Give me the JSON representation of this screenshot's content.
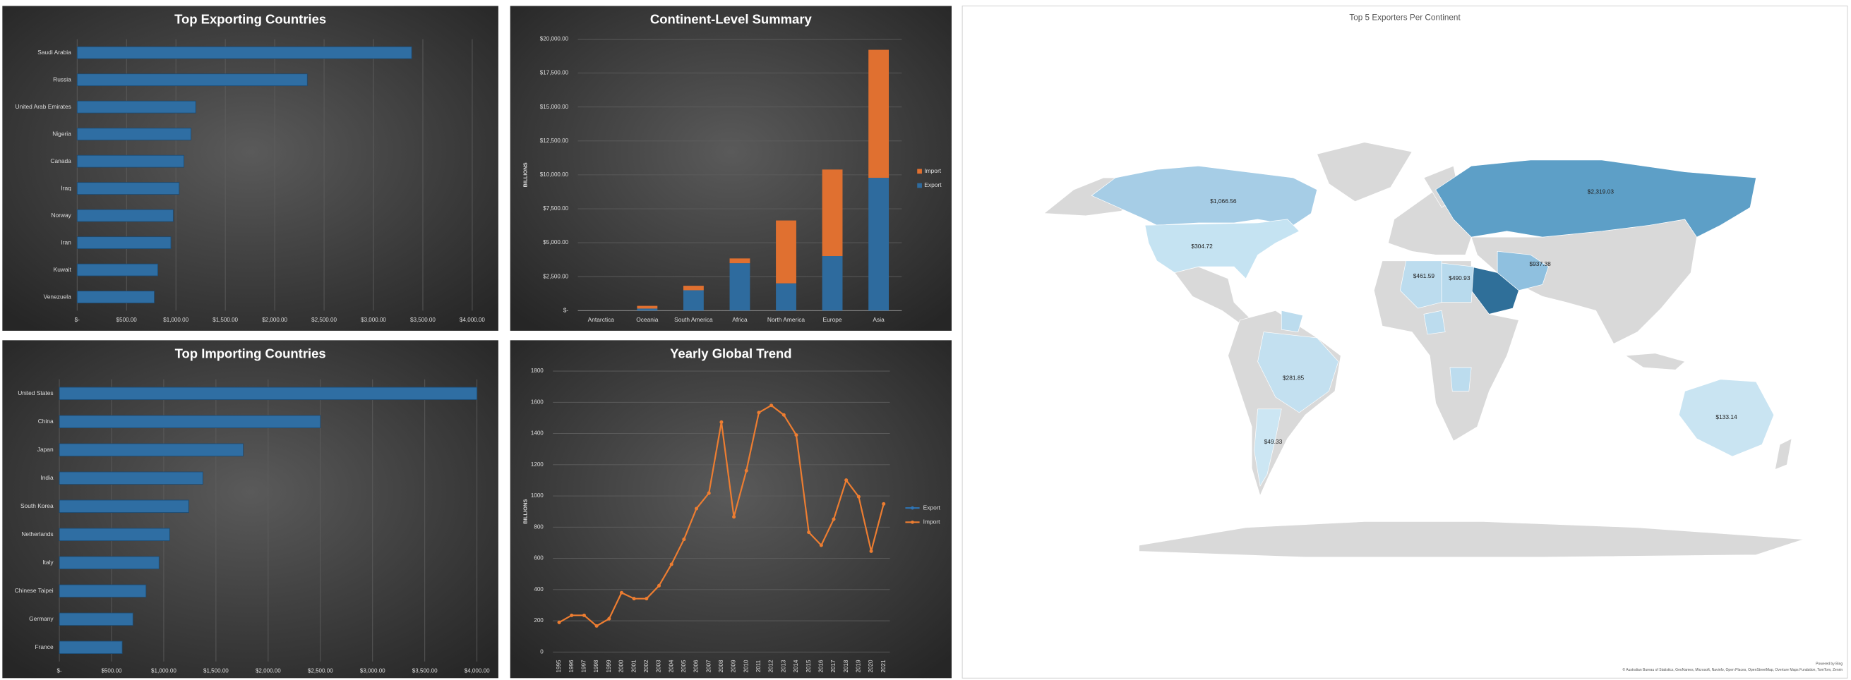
{
  "chart_data": [
    {
      "type": "bar",
      "orientation": "horizontal",
      "title": "Top Exporting Countries",
      "categories": [
        "Saudi Arabia",
        "Russia",
        "United Arab Emirates",
        "Nigeria",
        "Canada",
        "Iraq",
        "Norway",
        "Iran",
        "Kuwait",
        "Venezuela"
      ],
      "values": [
        3387,
        2330,
        1201,
        1153,
        1081,
        1033,
        973,
        949,
        817,
        781
      ],
      "color": "#2f6ea3",
      "grid": true,
      "xlim": [
        0,
        4000
      ],
      "xticks": [
        {
          "value": 0,
          "label": "$-"
        },
        {
          "value": 500,
          "label": "$500.00"
        },
        {
          "value": 1000,
          "label": "$1,000.00"
        },
        {
          "value": 1500,
          "label": "$1,500.00"
        },
        {
          "value": 2000,
          "label": "$2,000.00"
        },
        {
          "value": 2500,
          "label": "$2,500.00"
        },
        {
          "value": 3000,
          "label": "$3,000.00"
        },
        {
          "value": 3500,
          "label": "$3,500.00"
        },
        {
          "value": 4000,
          "label": "$4,000.00"
        }
      ]
    },
    {
      "type": "bar",
      "orientation": "vertical",
      "stacked": true,
      "title": "Continent-Level Summary",
      "y_label": "BILLIONS",
      "categories": [
        "Antarctica",
        "Oceania",
        "South America",
        "Africa",
        "North America",
        "Europe",
        "Asia"
      ],
      "series": [
        {
          "name": "Export",
          "color": "#2e6b9e",
          "values": [
            0,
            150,
            1500,
            3493,
            2009,
            4017,
            9782
          ]
        },
        {
          "name": "Import",
          "color": "#e07030",
          "values": [
            0,
            200,
            330,
            350,
            4630,
            6376,
            9432
          ]
        }
      ],
      "legend": "right",
      "grid": true,
      "ylim": [
        0,
        20000
      ],
      "yticks": [
        {
          "value": 0,
          "label": "$-"
        },
        {
          "value": 2500,
          "label": "$2,500.00"
        },
        {
          "value": 5000,
          "label": "$5,000.00"
        },
        {
          "value": 7500,
          "label": "$7,500.00"
        },
        {
          "value": 10000,
          "label": "$10,000.00"
        },
        {
          "value": 12500,
          "label": "$12,500.00"
        },
        {
          "value": 15000,
          "label": "$15,000.00"
        },
        {
          "value": 17500,
          "label": "$17,500.00"
        },
        {
          "value": 20000,
          "label": "$20,000.00"
        }
      ]
    },
    {
      "type": "bar",
      "orientation": "horizontal",
      "title": "Top Importing Countries",
      "categories": [
        "United States",
        "China",
        "Japan",
        "India",
        "South Korea",
        "Netherlands",
        "Italy",
        "Chinese Taipei",
        "Germany",
        "France"
      ],
      "values": [
        4000,
        2500,
        1761,
        1375,
        1239,
        1057,
        955,
        830,
        705,
        602
      ],
      "color": "#2f6ea3",
      "grid": true,
      "xlim": [
        0,
        4000
      ],
      "xticks": [
        {
          "value": 0,
          "label": "$-"
        },
        {
          "value": 500,
          "label": "$500.00"
        },
        {
          "value": 1000,
          "label": "$1,000.00"
        },
        {
          "value": 1500,
          "label": "$1,500.00"
        },
        {
          "value": 2000,
          "label": "$2,000.00"
        },
        {
          "value": 2500,
          "label": "$2,500.00"
        },
        {
          "value": 3000,
          "label": "$3,000.00"
        },
        {
          "value": 3500,
          "label": "$3,500.00"
        },
        {
          "value": 4000,
          "label": "$4,000.00"
        }
      ]
    },
    {
      "type": "line",
      "title": "Yearly Global Trend",
      "y_label": "BILLIONS",
      "categories": [
        "1995",
        "1996",
        "1997",
        "1998",
        "1999",
        "2000",
        "2001",
        "2002",
        "2003",
        "2004",
        "2005",
        "2006",
        "2007",
        "2008",
        "2009",
        "2010",
        "2011",
        "2012",
        "2013",
        "2014",
        "2015",
        "2016",
        "2017",
        "2018",
        "2019",
        "2020",
        "2021"
      ],
      "series": [
        {
          "name": "Export",
          "color": "#2e75b6",
          "values": [
            null,
            null,
            null,
            null,
            null,
            null,
            null,
            null,
            null,
            null,
            null,
            null,
            null,
            null,
            null,
            null,
            null,
            null,
            null,
            null,
            null,
            null,
            null,
            null,
            null,
            null,
            null
          ]
        },
        {
          "name": "Import",
          "color": "#ed7d31",
          "values": [
            190,
            235,
            235,
            167,
            213,
            380,
            342,
            342,
            425,
            562,
            722,
            919,
            1018,
            1473,
            866,
            1162,
            1534,
            1580,
            1519,
            1390,
            767,
            684,
            851,
            1101,
            995,
            646,
            949
          ]
        }
      ],
      "legend": "right",
      "grid": true,
      "ylim": [
        0,
        1800
      ],
      "yticks": [
        0,
        200,
        400,
        600,
        800,
        1000,
        1200,
        1400,
        1600,
        1800
      ]
    },
    {
      "type": "map",
      "title": "Top 5 Exporters Per Continent",
      "values": [
        1066.56,
        304.72,
        2319.03,
        937.38,
        461.59,
        490.93,
        281.85,
        49.33,
        133.14
      ],
      "value_labels": [
        "$1,066.56",
        "$304.72",
        "$2,319.03",
        "$937.38",
        "$461.59",
        "$490.93",
        "$281.85",
        "$49.33",
        "$133.14"
      ],
      "colors": [
        "#a6cde6",
        "#c5e3f2",
        "#5d9fc7",
        "#8fc0df",
        "#bcdcee",
        "#b8daed",
        "#c3e0f0",
        "#cce6f3",
        "#c9e4f2"
      ],
      "attribution": [
        "Powered by Bing",
        "© Australian Bureau of Statistics, GeoNames, Microsoft, Navinfo, Open Places, OpenStreetMap, Overture Maps Fundation, TomTom, Zenrin"
      ]
    }
  ]
}
